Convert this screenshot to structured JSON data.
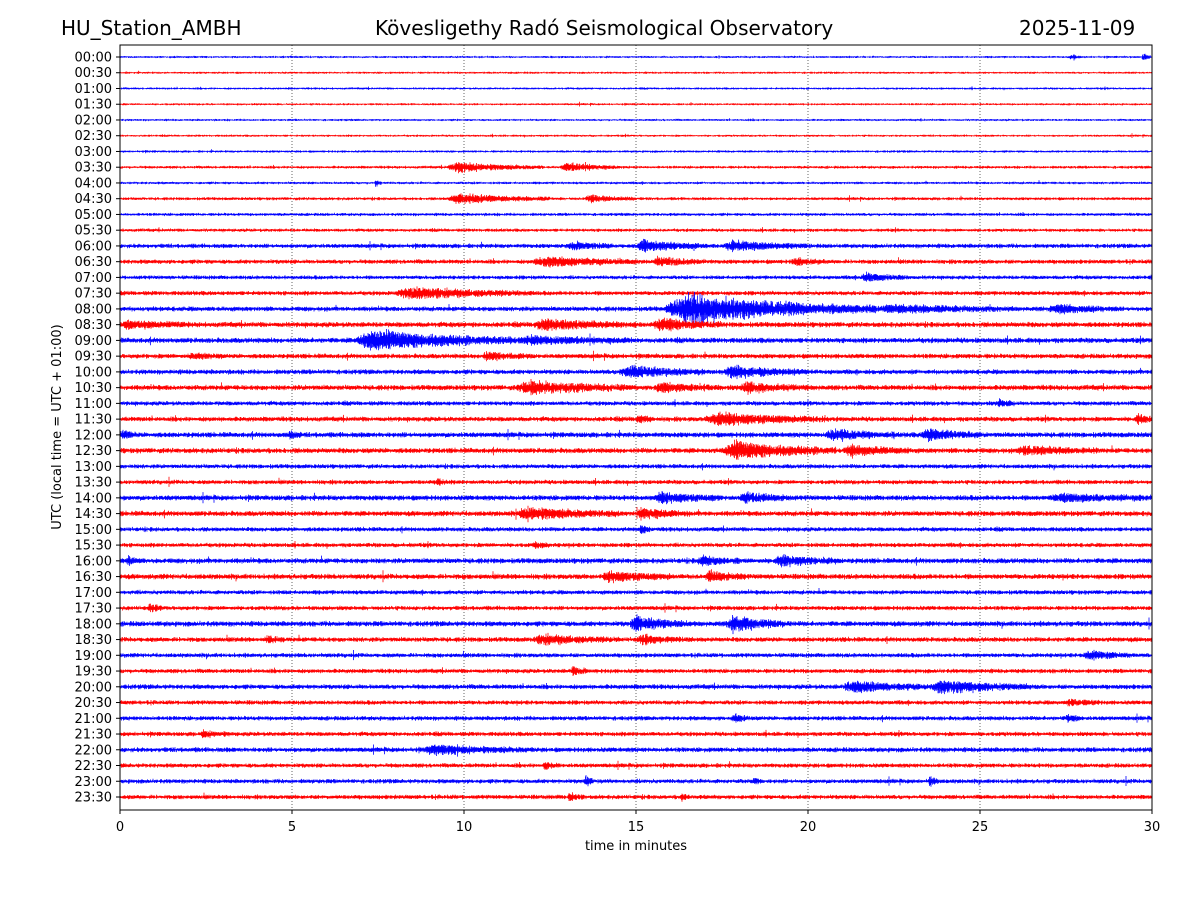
{
  "header": {
    "station": "HU_Station_AMBH",
    "observatory": "Kövesligethy Radó Seismological Observatory",
    "date": "2025-11-09"
  },
  "chart_data": {
    "type": "line",
    "title": "Kövesligethy Radó Seismological Observatory",
    "xlabel": "time in minutes",
    "ylabel": "UTC (local time = UTC + 01:00)",
    "xlim": [
      0,
      30
    ],
    "xticks": [
      0,
      5,
      10,
      15,
      20,
      25,
      30
    ],
    "grid": "vertical dotted at 5-minute ticks",
    "row_labels": [
      "00:00",
      "00:30",
      "01:00",
      "01:30",
      "02:00",
      "02:30",
      "03:00",
      "03:30",
      "04:00",
      "04:30",
      "05:00",
      "05:30",
      "06:00",
      "06:30",
      "07:00",
      "07:30",
      "08:00",
      "08:30",
      "09:00",
      "09:30",
      "10:00",
      "10:30",
      "11:00",
      "11:30",
      "12:00",
      "12:30",
      "13:00",
      "13:30",
      "14:00",
      "14:30",
      "15:00",
      "15:30",
      "16:00",
      "16:30",
      "17:00",
      "17:30",
      "18:00",
      "18:30",
      "19:00",
      "19:30",
      "20:00",
      "20:30",
      "21:00",
      "21:30",
      "22:00",
      "22:30",
      "23:00",
      "23:30"
    ],
    "colors": [
      "#0000ff",
      "#ff0000"
    ],
    "noise_levels": [
      1,
      1,
      1,
      1,
      1,
      1,
      1.1,
      1.3,
      1.2,
      1.4,
      1.4,
      1.5,
      2,
      2,
      1.8,
      2,
      2.2,
      2.4,
      2.4,
      2.2,
      2.2,
      2.4,
      2,
      2.2,
      2.4,
      2.4,
      2,
      2,
      2.4,
      2.4,
      2,
      2,
      2.4,
      2.4,
      2,
      2,
      2.4,
      2.2,
      2,
      2,
      2.2,
      2,
      2,
      2,
      2.2,
      2,
      2,
      2
    ],
    "events": [
      [
        0,
        27.6,
        27.9,
        2
      ],
      [
        0,
        29.7,
        30,
        3
      ],
      [
        7,
        9.5,
        12.3,
        4
      ],
      [
        7,
        12.8,
        14.5,
        3.5
      ],
      [
        8,
        7.4,
        7.6,
        3
      ],
      [
        9,
        9.5,
        12.5,
        4
      ],
      [
        9,
        13.5,
        15,
        3
      ],
      [
        12,
        13,
        14.3,
        3
      ],
      [
        12,
        15,
        17,
        5
      ],
      [
        12,
        17.5,
        20,
        4
      ],
      [
        13,
        12,
        15,
        4
      ],
      [
        13,
        15.5,
        17,
        3.5
      ],
      [
        13,
        19.5,
        20.5,
        3
      ],
      [
        14,
        21.5,
        23,
        3
      ],
      [
        15,
        8,
        12,
        4.5
      ],
      [
        16,
        15.8,
        22,
        12
      ],
      [
        16,
        22,
        26,
        3
      ],
      [
        16,
        27,
        29,
        3.5
      ],
      [
        17,
        0,
        2,
        3
      ],
      [
        17,
        12,
        15,
        4
      ],
      [
        17,
        15.5,
        17.5,
        5
      ],
      [
        18,
        6.8,
        11.5,
        8
      ],
      [
        18,
        11.5,
        15,
        3
      ],
      [
        19,
        2,
        3,
        2
      ],
      [
        19,
        10.5,
        12,
        3
      ],
      [
        20,
        14.5,
        17,
        5
      ],
      [
        20,
        17.5,
        20,
        5
      ],
      [
        21,
        11.5,
        15,
        5
      ],
      [
        21,
        15.5,
        17.5,
        3.5
      ],
      [
        21,
        18,
        20,
        4
      ],
      [
        22,
        25.5,
        26,
        3
      ],
      [
        23,
        15,
        15.5,
        3
      ],
      [
        23,
        17,
        20.5,
        5
      ],
      [
        23,
        29.5,
        30,
        4
      ],
      [
        24,
        0,
        0.5,
        3
      ],
      [
        24,
        4.9,
        5.3,
        3
      ],
      [
        24,
        20.5,
        22.5,
        4
      ],
      [
        24,
        23.3,
        25,
        5
      ],
      [
        25,
        17.5,
        20.8,
        7
      ],
      [
        25,
        21,
        23,
        4
      ],
      [
        25,
        26,
        28.5,
        3
      ],
      [
        27,
        9.2,
        9.5,
        3
      ],
      [
        28,
        15.5,
        17.5,
        4
      ],
      [
        28,
        18,
        19.5,
        4
      ],
      [
        28,
        27,
        30,
        3
      ],
      [
        29,
        11.5,
        14.5,
        5
      ],
      [
        29,
        15,
        16.5,
        4
      ],
      [
        30,
        15.1,
        15.4,
        4
      ],
      [
        31,
        12,
        12.5,
        2.5
      ],
      [
        32,
        0.2,
        0.6,
        3
      ],
      [
        32,
        16.8,
        18,
        4
      ],
      [
        32,
        19,
        21,
        4
      ],
      [
        33,
        14,
        16,
        4
      ],
      [
        33,
        17,
        18.2,
        4
      ],
      [
        35,
        0.8,
        1.2,
        3
      ],
      [
        36,
        14.8,
        16.6,
        6
      ],
      [
        36,
        17.6,
        19.5,
        6
      ],
      [
        37,
        4.2,
        4.8,
        2.5
      ],
      [
        37,
        12,
        14.5,
        3.5
      ],
      [
        37,
        15,
        16.5,
        3
      ],
      [
        38,
        28,
        29.5,
        3.5
      ],
      [
        39,
        13.1,
        13.6,
        4
      ],
      [
        40,
        21,
        23.5,
        4.5
      ],
      [
        40,
        23.5,
        26.5,
        5
      ],
      [
        41,
        27.5,
        28.5,
        2.5
      ],
      [
        42,
        17.8,
        18.3,
        3
      ],
      [
        42,
        27.5,
        28,
        3
      ],
      [
        43,
        2.3,
        3.2,
        2.5
      ],
      [
        44,
        8.8,
        12,
        3.5
      ],
      [
        45,
        12.3,
        12.8,
        2.5
      ],
      [
        46,
        13.5,
        13.8,
        4
      ],
      [
        46,
        18.4,
        18.7,
        3
      ],
      [
        46,
        23.5,
        23.8,
        4
      ],
      [
        47,
        13,
        13.5,
        3
      ],
      [
        47,
        16.3,
        16.6,
        3
      ]
    ]
  }
}
